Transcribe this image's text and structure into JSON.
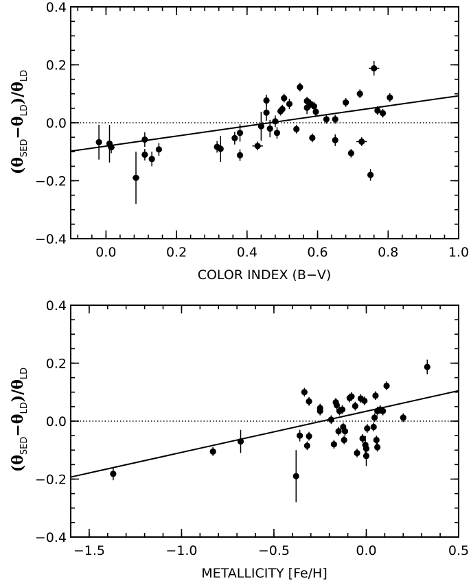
{
  "chart_data": [
    {
      "type": "scatter",
      "panel": "top",
      "xlabel": "COLOR INDEX (B−V)",
      "ylabel": {
        "theta": "θ",
        "sed": "SED",
        "ld": "LD"
      },
      "xlim": [
        -0.1,
        1.0
      ],
      "ylim": [
        -0.4,
        0.4
      ],
      "x_ticks": [
        0.0,
        0.2,
        0.4,
        0.6,
        0.8,
        1.0
      ],
      "x_tick_labels": [
        "0.0",
        "0.2",
        "0.4",
        "0.6",
        "0.8",
        "1.0"
      ],
      "y_ticks": [
        -0.4,
        -0.2,
        0.0,
        0.2,
        0.4
      ],
      "y_tick_labels": [
        "−0.4",
        "−0.2",
        "0.0",
        "0.2",
        "0.4"
      ],
      "reference_line_y": 0.0,
      "fit_line": {
        "x": [
          -0.1,
          1.0
        ],
        "y": [
          -0.098,
          0.093
        ]
      },
      "points": [
        {
          "x": -0.02,
          "y": -0.067,
          "yerr": 0.06,
          "xerr": 0
        },
        {
          "x": 0.01,
          "y": -0.072,
          "yerr": 0.065,
          "xerr": 0
        },
        {
          "x": 0.015,
          "y": -0.085,
          "yerr": 0.02,
          "xerr": 0.01
        },
        {
          "x": 0.085,
          "y": -0.19,
          "yerr": 0.09,
          "xerr": 0.01
        },
        {
          "x": 0.11,
          "y": -0.11,
          "yerr": 0.02,
          "xerr": 0
        },
        {
          "x": 0.11,
          "y": -0.058,
          "yerr": 0.025,
          "xerr": 0
        },
        {
          "x": 0.13,
          "y": -0.125,
          "yerr": 0.025,
          "xerr": 0
        },
        {
          "x": 0.15,
          "y": -0.092,
          "yerr": 0.022,
          "xerr": 0
        },
        {
          "x": 0.315,
          "y": -0.083,
          "yerr": 0.02,
          "xerr": 0
        },
        {
          "x": 0.325,
          "y": -0.09,
          "yerr": 0.045,
          "xerr": 0
        },
        {
          "x": 0.365,
          "y": -0.053,
          "yerr": 0.022,
          "xerr": 0
        },
        {
          "x": 0.38,
          "y": -0.035,
          "yerr": 0.03,
          "xerr": 0
        },
        {
          "x": 0.38,
          "y": -0.112,
          "yerr": 0.02,
          "xerr": 0
        },
        {
          "x": 0.43,
          "y": -0.08,
          "yerr": 0.015,
          "xerr": 0.015
        },
        {
          "x": 0.44,
          "y": -0.012,
          "yerr": 0.05,
          "xerr": 0
        },
        {
          "x": 0.455,
          "y": 0.077,
          "yerr": 0.02,
          "xerr": 0
        },
        {
          "x": 0.455,
          "y": 0.035,
          "yerr": 0.028,
          "xerr": 0
        },
        {
          "x": 0.465,
          "y": -0.02,
          "yerr": 0.03,
          "xerr": 0
        },
        {
          "x": 0.48,
          "y": 0.005,
          "yerr": 0.02,
          "xerr": 0
        },
        {
          "x": 0.485,
          "y": -0.035,
          "yerr": 0.02,
          "xerr": 0
        },
        {
          "x": 0.495,
          "y": 0.04,
          "yerr": 0.015,
          "xerr": 0
        },
        {
          "x": 0.5,
          "y": 0.047,
          "yerr": 0.015,
          "xerr": 0
        },
        {
          "x": 0.505,
          "y": 0.085,
          "yerr": 0.015,
          "xerr": 0.008
        },
        {
          "x": 0.52,
          "y": 0.065,
          "yerr": 0.018,
          "xerr": 0
        },
        {
          "x": 0.54,
          "y": -0.022,
          "yerr": 0.015,
          "xerr": 0
        },
        {
          "x": 0.55,
          "y": 0.123,
          "yerr": 0.015,
          "xerr": 0
        },
        {
          "x": 0.57,
          "y": 0.075,
          "yerr": 0.015,
          "xerr": 0
        },
        {
          "x": 0.57,
          "y": 0.052,
          "yerr": 0.022,
          "xerr": 0
        },
        {
          "x": 0.58,
          "y": 0.065,
          "yerr": 0.015,
          "xerr": 0
        },
        {
          "x": 0.585,
          "y": -0.052,
          "yerr": 0.015,
          "xerr": 0
        },
        {
          "x": 0.59,
          "y": 0.057,
          "yerr": 0.015,
          "xerr": 0
        },
        {
          "x": 0.595,
          "y": 0.038,
          "yerr": 0.015,
          "xerr": 0
        },
        {
          "x": 0.625,
          "y": 0.012,
          "yerr": 0.015,
          "xerr": 0
        },
        {
          "x": 0.65,
          "y": 0.012,
          "yerr": 0.015,
          "xerr": 0
        },
        {
          "x": 0.65,
          "y": -0.06,
          "yerr": 0.02,
          "xerr": 0
        },
        {
          "x": 0.68,
          "y": 0.07,
          "yerr": 0.015,
          "xerr": 0
        },
        {
          "x": 0.695,
          "y": -0.105,
          "yerr": 0.015,
          "xerr": 0
        },
        {
          "x": 0.72,
          "y": 0.1,
          "yerr": 0.015,
          "xerr": 0
        },
        {
          "x": 0.725,
          "y": -0.065,
          "yerr": 0.015,
          "xerr": 0.015
        },
        {
          "x": 0.75,
          "y": -0.18,
          "yerr": 0.02,
          "xerr": 0
        },
        {
          "x": 0.76,
          "y": 0.188,
          "yerr": 0.025,
          "xerr": 0.015
        },
        {
          "x": 0.77,
          "y": 0.042,
          "yerr": 0.015,
          "xerr": 0
        },
        {
          "x": 0.785,
          "y": 0.033,
          "yerr": 0.015,
          "xerr": 0
        },
        {
          "x": 0.805,
          "y": 0.087,
          "yerr": 0.015,
          "xerr": 0
        }
      ]
    },
    {
      "type": "scatter",
      "panel": "bottom",
      "xlabel": "METALLICITY [Fe/H]",
      "ylabel": {
        "theta": "θ",
        "sed": "SED",
        "ld": "LD"
      },
      "xlim": [
        -1.6,
        0.5
      ],
      "ylim": [
        -0.4,
        0.4
      ],
      "x_ticks": [
        -1.5,
        -1.0,
        -0.5,
        0.0,
        0.5
      ],
      "x_tick_labels": [
        "−1.5",
        "−1.0",
        "−0.5",
        "0.0",
        "0.5"
      ],
      "y_ticks": [
        -0.4,
        -0.2,
        0.0,
        0.2,
        0.4
      ],
      "y_tick_labels": [
        "−0.4",
        "−0.2",
        "0.0",
        "0.2",
        "0.4"
      ],
      "reference_line_y": 0.0,
      "fit_line": {
        "x": [
          -1.6,
          0.5
        ],
        "y": [
          -0.193,
          0.105
        ]
      },
      "points": [
        {
          "x": -1.37,
          "y": -0.182,
          "yerr": 0.022
        },
        {
          "x": -0.83,
          "y": -0.105,
          "yerr": 0.015
        },
        {
          "x": -0.68,
          "y": -0.07,
          "yerr": 0.04
        },
        {
          "x": -0.38,
          "y": -0.19,
          "yerr": 0.09
        },
        {
          "x": -0.36,
          "y": -0.05,
          "yerr": 0.02
        },
        {
          "x": -0.335,
          "y": 0.1,
          "yerr": 0.015
        },
        {
          "x": -0.32,
          "y": -0.085,
          "yerr": 0.015
        },
        {
          "x": -0.31,
          "y": 0.068,
          "yerr": 0.015
        },
        {
          "x": -0.31,
          "y": -0.052,
          "yerr": 0.015
        },
        {
          "x": -0.25,
          "y": 0.035,
          "yerr": 0.015
        },
        {
          "x": -0.25,
          "y": 0.045,
          "yerr": 0.015
        },
        {
          "x": -0.19,
          "y": 0.005,
          "yerr": 0.015
        },
        {
          "x": -0.175,
          "y": -0.08,
          "yerr": 0.015
        },
        {
          "x": -0.165,
          "y": 0.065,
          "yerr": 0.015
        },
        {
          "x": -0.16,
          "y": 0.055,
          "yerr": 0.015
        },
        {
          "x": -0.15,
          "y": -0.035,
          "yerr": 0.015
        },
        {
          "x": -0.145,
          "y": 0.035,
          "yerr": 0.015
        },
        {
          "x": -0.13,
          "y": 0.04,
          "yerr": 0.015
        },
        {
          "x": -0.125,
          "y": -0.02,
          "yerr": 0.015
        },
        {
          "x": -0.12,
          "y": -0.065,
          "yerr": 0.015
        },
        {
          "x": -0.115,
          "y": -0.035,
          "yerr": 0.015
        },
        {
          "x": -0.09,
          "y": 0.08,
          "yerr": 0.015
        },
        {
          "x": -0.08,
          "y": 0.085,
          "yerr": 0.015
        },
        {
          "x": -0.06,
          "y": 0.052,
          "yerr": 0.015
        },
        {
          "x": -0.05,
          "y": -0.11,
          "yerr": 0.015
        },
        {
          "x": -0.03,
          "y": 0.078,
          "yerr": 0.015
        },
        {
          "x": -0.02,
          "y": -0.06,
          "yerr": 0.015
        },
        {
          "x": -0.01,
          "y": 0.07,
          "yerr": 0.015
        },
        {
          "x": -0.005,
          "y": -0.082,
          "yerr": 0.03
        },
        {
          "x": 0.0,
          "y": -0.095,
          "yerr": 0.02
        },
        {
          "x": 0.0,
          "y": -0.12,
          "yerr": 0.035
        },
        {
          "x": 0.005,
          "y": -0.025,
          "yerr": 0.015
        },
        {
          "x": 0.04,
          "y": -0.02,
          "yerr": 0.015
        },
        {
          "x": 0.045,
          "y": 0.012,
          "yerr": 0.015
        },
        {
          "x": 0.05,
          "y": 0.088,
          "yerr": 0.015
        },
        {
          "x": 0.055,
          "y": -0.065,
          "yerr": 0.015
        },
        {
          "x": 0.06,
          "y": -0.09,
          "yerr": 0.015
        },
        {
          "x": 0.06,
          "y": 0.035,
          "yerr": 0.015
        },
        {
          "x": 0.075,
          "y": 0.04,
          "yerr": 0.015
        },
        {
          "x": 0.09,
          "y": 0.035,
          "yerr": 0.015
        },
        {
          "x": 0.11,
          "y": 0.122,
          "yerr": 0.015
        },
        {
          "x": 0.2,
          "y": 0.012,
          "yerr": 0.015
        },
        {
          "x": 0.33,
          "y": 0.187,
          "yerr": 0.025
        }
      ]
    }
  ]
}
